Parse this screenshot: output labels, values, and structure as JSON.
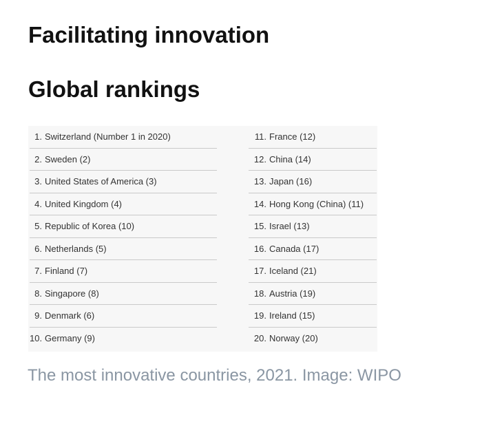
{
  "title": "Facilitating innovation",
  "subtitle": "Global rankings",
  "rankings": {
    "left": [
      {
        "rank": "1.",
        "name": "Switzerland (Number 1 in 2020)"
      },
      {
        "rank": "2.",
        "name": "Sweden (2)"
      },
      {
        "rank": "3.",
        "name": "United States of America (3)"
      },
      {
        "rank": "4.",
        "name": "United Kingdom (4)"
      },
      {
        "rank": "5.",
        "name": "Republic of Korea (10)"
      },
      {
        "rank": "6.",
        "name": "Netherlands (5)"
      },
      {
        "rank": "7.",
        "name": "Finland (7)"
      },
      {
        "rank": "8.",
        "name": "Singapore (8)"
      },
      {
        "rank": "9.",
        "name": "Denmark (6)"
      },
      {
        "rank": "10.",
        "name": "Germany (9)"
      }
    ],
    "right": [
      {
        "rank": "11.",
        "name": "France (12)"
      },
      {
        "rank": "12.",
        "name": "China (14)"
      },
      {
        "rank": "13.",
        "name": "Japan (16)"
      },
      {
        "rank": "14.",
        "name": "Hong Kong (China) (11)"
      },
      {
        "rank": "15.",
        "name": "Israel (13)"
      },
      {
        "rank": "16.",
        "name": "Canada (17)"
      },
      {
        "rank": "17.",
        "name": "Iceland (21)"
      },
      {
        "rank": "18.",
        "name": "Austria (19)"
      },
      {
        "rank": "19.",
        "name": "Ireland (15)"
      },
      {
        "rank": "20.",
        "name": "Norway (20)"
      }
    ]
  },
  "caption": "The most innovative countries, 2021. Image: WIPO",
  "colors": {
    "heading": "#111111",
    "caption": "#8a96a3",
    "table_background": "#f7f7f7",
    "table_divider": "#c9c9c9"
  }
}
